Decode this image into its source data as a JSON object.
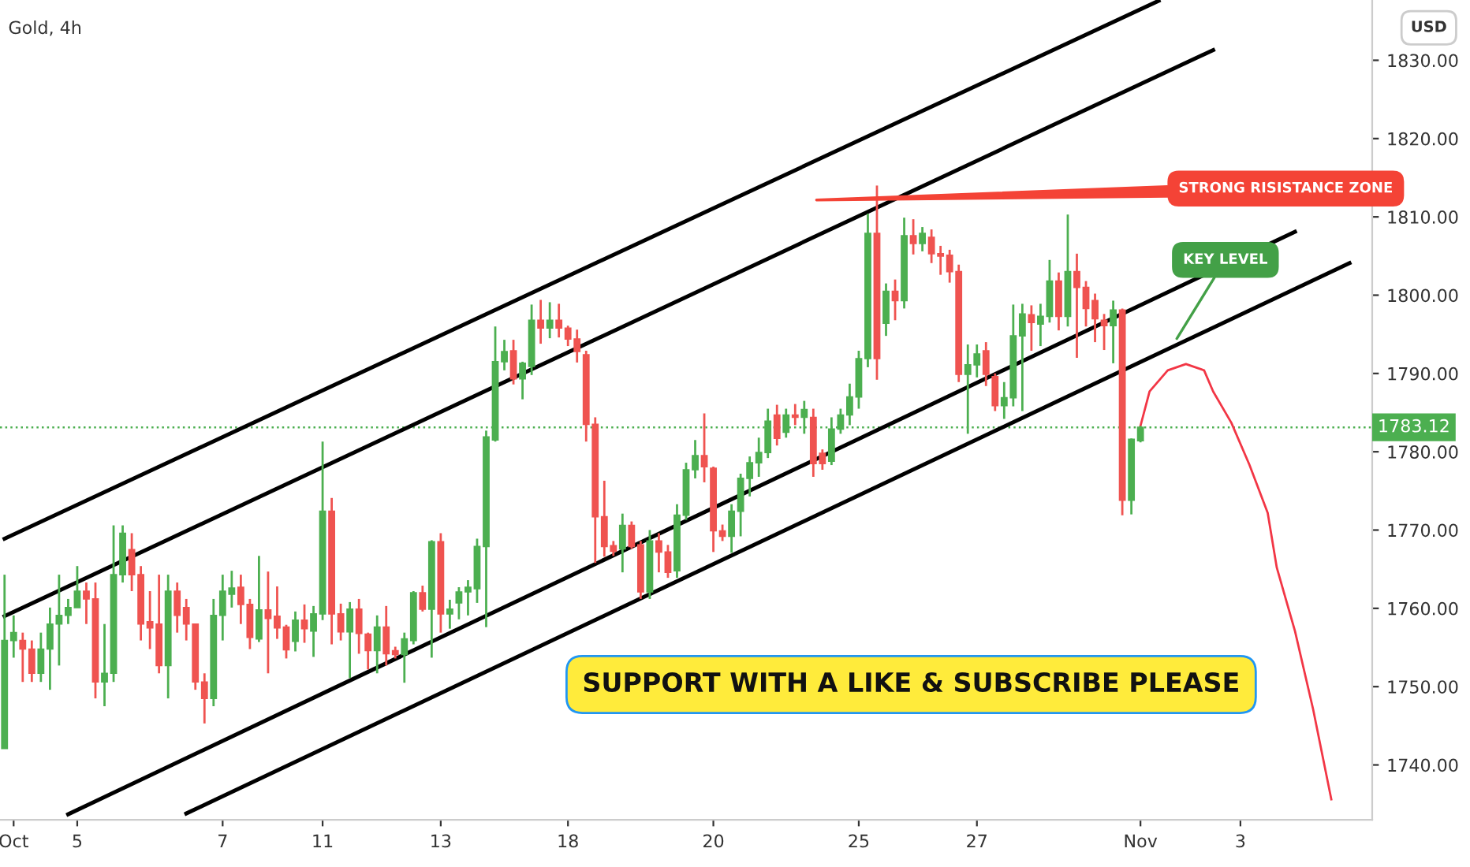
{
  "chart_data": {
    "type": "candlestick",
    "title": "Gold, 4h",
    "categories": [
      null,
      "Oct",
      null,
      null,
      null,
      null,
      null,
      null,
      "5",
      null,
      null,
      null,
      null,
      null,
      null,
      null,
      null,
      null,
      null,
      null,
      null,
      null,
      null,
      null,
      "7",
      null,
      null,
      null,
      null,
      null,
      null,
      null,
      null,
      null,
      null,
      "11",
      null,
      null,
      null,
      null,
      null,
      null,
      null,
      null,
      null,
      null,
      null,
      null,
      "13",
      null,
      null,
      null,
      null,
      null,
      null,
      null,
      null,
      null,
      null,
      null,
      null,
      null,
      "18",
      null,
      null,
      null,
      null,
      null,
      null,
      null,
      null,
      null,
      null,
      null,
      null,
      null,
      null,
      null,
      "20",
      null,
      null,
      null,
      null,
      null,
      null,
      null,
      null,
      null,
      null,
      null,
      null,
      null,
      null,
      null,
      "25",
      null,
      null,
      null,
      null,
      null,
      null,
      null,
      null,
      null,
      null,
      null,
      null,
      "27",
      null,
      null,
      null,
      null,
      null,
      null,
      null,
      null,
      null,
      null,
      null,
      null,
      null,
      null,
      null,
      null,
      null,
      "Nov",
      null,
      null,
      null,
      null,
      null,
      null,
      null,
      null,
      null,
      null,
      "3",
      null,
      null,
      null,
      null,
      null,
      null,
      null,
      null,
      null,
      null,
      null,
      null,
      null,
      null
    ],
    "ohlc": [
      [
        1742.1,
        1764.3,
        1742.1,
        1755.9
      ],
      [
        1755.9,
        1759.1,
        1753.7,
        1756.9
      ],
      [
        1755.9,
        1756.9,
        1750.6,
        1754.8
      ],
      [
        1754.8,
        1755.9,
        1750.6,
        1751.7
      ],
      [
        1751.7,
        1756.9,
        1750.6,
        1754.8
      ],
      [
        1754.8,
        1760.1,
        1749.6,
        1758.0
      ],
      [
        1758.0,
        1764.3,
        1752.7,
        1759.1
      ],
      [
        1759.1,
        1761.2,
        1758.0,
        1760.1
      ],
      [
        1760.1,
        1765.4,
        1760.1,
        1762.2
      ],
      [
        1762.2,
        1763.3,
        1758.0,
        1761.2
      ],
      [
        1761.2,
        1763.3,
        1748.5,
        1750.6
      ],
      [
        1750.6,
        1758.0,
        1747.5,
        1751.7
      ],
      [
        1751.7,
        1770.6,
        1750.6,
        1764.3
      ],
      [
        1764.3,
        1770.6,
        1763.3,
        1769.6
      ],
      [
        1767.5,
        1769.6,
        1762.2,
        1764.3
      ],
      [
        1764.3,
        1765.4,
        1755.9,
        1758.0
      ],
      [
        1758.3,
        1762.2,
        1754.8,
        1757.5
      ],
      [
        1758.0,
        1764.3,
        1751.7,
        1752.7
      ],
      [
        1752.7,
        1764.3,
        1748.5,
        1762.2
      ],
      [
        1762.2,
        1763.3,
        1756.9,
        1759.1
      ],
      [
        1760.1,
        1761.2,
        1755.9,
        1758.0
      ],
      [
        1758.0,
        1758.0,
        1749.6,
        1750.6
      ],
      [
        1750.6,
        1751.7,
        1745.3,
        1748.5
      ],
      [
        1748.5,
        1761.2,
        1747.5,
        1759.1
      ],
      [
        1759.1,
        1764.3,
        1755.9,
        1762.2
      ],
      [
        1761.8,
        1764.8,
        1760.1,
        1762.6
      ],
      [
        1762.7,
        1764.3,
        1758.0,
        1760.5
      ],
      [
        1760.5,
        1761.2,
        1754.8,
        1756.3
      ],
      [
        1756.1,
        1766.7,
        1755.7,
        1759.8
      ],
      [
        1759.8,
        1764.7,
        1751.7,
        1758.7
      ],
      [
        1759.0,
        1762.8,
        1756.1,
        1757.5
      ],
      [
        1757.6,
        1757.9,
        1753.6,
        1754.7
      ],
      [
        1755.8,
        1759.6,
        1754.5,
        1758.5
      ],
      [
        1758.5,
        1760.5,
        1755.6,
        1757.4
      ],
      [
        1757.1,
        1760.3,
        1753.8,
        1759.3
      ],
      [
        1759.3,
        1781.3,
        1758.5,
        1772.4
      ],
      [
        1772.4,
        1774.1,
        1755.4,
        1759.3
      ],
      [
        1759.3,
        1760.6,
        1755.9,
        1757.0
      ],
      [
        1757.0,
        1760.8,
        1751.1,
        1759.9
      ],
      [
        1759.9,
        1761.2,
        1754.2,
        1756.8
      ],
      [
        1756.7,
        1756.9,
        1752.2,
        1754.6
      ],
      [
        1754.6,
        1759.1,
        1751.7,
        1757.6
      ],
      [
        1757.6,
        1760.3,
        1752.7,
        1754.2
      ],
      [
        1754.6,
        1755.1,
        1753.6,
        1754.1
      ],
      [
        1754.1,
        1756.9,
        1750.5,
        1756.1
      ],
      [
        1755.9,
        1762.2,
        1755.4,
        1762.0
      ],
      [
        1762.0,
        1762.9,
        1759.6,
        1759.9
      ],
      [
        1759.9,
        1768.7,
        1753.7,
        1768.5
      ],
      [
        1768.5,
        1769.6,
        1756.9,
        1759.3
      ],
      [
        1759.3,
        1761.1,
        1757.4,
        1759.9
      ],
      [
        1760.7,
        1762.7,
        1758.6,
        1762.1
      ],
      [
        1762.1,
        1763.6,
        1759.1,
        1762.7
      ],
      [
        1762.5,
        1768.9,
        1760.7,
        1767.9
      ],
      [
        1767.9,
        1782.7,
        1757.6,
        1781.9
      ],
      [
        1781.5,
        1796.0,
        1781.3,
        1791.5
      ],
      [
        1791.5,
        1794.3,
        1790.4,
        1792.8
      ],
      [
        1792.9,
        1794.3,
        1788.6,
        1789.3
      ],
      [
        1789.3,
        1791.5,
        1786.7,
        1791.3
      ],
      [
        1790.9,
        1798.8,
        1789.8,
        1796.8
      ],
      [
        1796.8,
        1799.4,
        1793.8,
        1795.8
      ],
      [
        1795.8,
        1799.1,
        1794.5,
        1796.8
      ],
      [
        1796.8,
        1798.9,
        1794.6,
        1795.8
      ],
      [
        1795.8,
        1796.1,
        1793.5,
        1794.4
      ],
      [
        1794.4,
        1795.6,
        1791.4,
        1792.8
      ],
      [
        1792.4,
        1792.9,
        1781.3,
        1783.5
      ],
      [
        1783.5,
        1784.4,
        1765.8,
        1771.7
      ],
      [
        1771.7,
        1776.3,
        1766.6,
        1767.9
      ],
      [
        1768.0,
        1768.6,
        1766.7,
        1767.3
      ],
      [
        1767.6,
        1772.1,
        1764.6,
        1770.6
      ],
      [
        1770.6,
        1771.1,
        1767.6,
        1767.9
      ],
      [
        1768.1,
        1768.6,
        1761.2,
        1762.1
      ],
      [
        1762.1,
        1770.0,
        1761.2,
        1768.6
      ],
      [
        1768.6,
        1769.6,
        1764.6,
        1767.2
      ],
      [
        1767.2,
        1768.1,
        1763.9,
        1764.6
      ],
      [
        1764.8,
        1773.3,
        1763.9,
        1771.9
      ],
      [
        1771.9,
        1778.6,
        1771.3,
        1777.7
      ],
      [
        1777.7,
        1781.5,
        1776.6,
        1779.5
      ],
      [
        1779.5,
        1784.9,
        1776.1,
        1778.1
      ],
      [
        1777.9,
        1778.1,
        1767.2,
        1769.9
      ],
      [
        1769.9,
        1770.7,
        1768.6,
        1769.2
      ],
      [
        1769.2,
        1773.3,
        1767.1,
        1772.4
      ],
      [
        1772.4,
        1777.2,
        1769.2,
        1776.6
      ],
      [
        1776.6,
        1779.4,
        1774.3,
        1778.6
      ],
      [
        1778.6,
        1781.8,
        1776.8,
        1779.9
      ],
      [
        1779.9,
        1785.5,
        1779.2,
        1783.9
      ],
      [
        1784.7,
        1786.0,
        1780.8,
        1781.7
      ],
      [
        1782.5,
        1785.5,
        1781.8,
        1784.7
      ],
      [
        1784.7,
        1786.1,
        1783.4,
        1784.4
      ],
      [
        1784.4,
        1786.5,
        1782.3,
        1785.4
      ],
      [
        1784.4,
        1785.5,
        1776.8,
        1778.5
      ],
      [
        1779.8,
        1780.3,
        1777.7,
        1778.5
      ],
      [
        1778.8,
        1784.4,
        1778.3,
        1782.9
      ],
      [
        1782.9,
        1785.5,
        1782.3,
        1784.7
      ],
      [
        1784.7,
        1788.7,
        1783.4,
        1787.0
      ],
      [
        1787.0,
        1792.9,
        1785.5,
        1791.9
      ],
      [
        1791.9,
        1810.4,
        1790.8,
        1807.9
      ],
      [
        1807.9,
        1814.0,
        1789.2,
        1791.9
      ],
      [
        1796.4,
        1801.5,
        1794.8,
        1800.5
      ],
      [
        1800.5,
        1802.0,
        1796.8,
        1799.3
      ],
      [
        1799.3,
        1809.9,
        1798.3,
        1807.6
      ],
      [
        1807.6,
        1809.7,
        1805.2,
        1806.6
      ],
      [
        1806.6,
        1808.7,
        1805.6,
        1807.9
      ],
      [
        1807.4,
        1808.4,
        1804.1,
        1805.3
      ],
      [
        1805.3,
        1806.3,
        1802.6,
        1805.0
      ],
      [
        1805.1,
        1805.8,
        1801.6,
        1803.0
      ],
      [
        1803.0,
        1803.9,
        1788.9,
        1789.9
      ],
      [
        1789.9,
        1793.7,
        1782.3,
        1791.1
      ],
      [
        1791.1,
        1793.7,
        1789.5,
        1792.5
      ],
      [
        1792.9,
        1794.0,
        1788.4,
        1789.9
      ],
      [
        1789.6,
        1790.0,
        1785.2,
        1785.9
      ],
      [
        1785.9,
        1788.9,
        1784.2,
        1786.9
      ],
      [
        1786.9,
        1798.8,
        1785.8,
        1794.8
      ],
      [
        1794.8,
        1798.9,
        1785.2,
        1797.6
      ],
      [
        1797.5,
        1798.7,
        1792.9,
        1796.5
      ],
      [
        1796.3,
        1798.9,
        1793.5,
        1797.3
      ],
      [
        1797.3,
        1804.5,
        1796.5,
        1801.8
      ],
      [
        1801.8,
        1802.9,
        1795.5,
        1797.3
      ],
      [
        1797.3,
        1810.3,
        1796.0,
        1803.0
      ],
      [
        1803.0,
        1805.3,
        1792.0,
        1801.0
      ],
      [
        1801.0,
        1801.8,
        1796.0,
        1798.3
      ],
      [
        1799.3,
        1800.2,
        1794.0,
        1797.0
      ],
      [
        1796.8,
        1797.6,
        1793.0,
        1796.1
      ],
      [
        1796.1,
        1799.3,
        1791.3,
        1798.1
      ],
      [
        1798.1,
        1798.3,
        1771.9,
        1773.8
      ],
      [
        1773.8,
        1781.7,
        1772.0,
        1781.6
      ],
      [
        1781.4,
        1783.3,
        1781.2,
        1783.12
      ],
      null,
      null,
      null,
      null,
      null,
      null,
      null,
      null,
      null,
      null,
      null,
      null,
      null,
      null,
      null,
      null,
      null,
      null,
      null,
      null,
      null,
      null,
      null,
      null,
      null
    ],
    "colors": [
      "#4caf50",
      "#4caf50",
      "#ef5350",
      "#ef5350",
      "#4caf50",
      "#4caf50",
      "#4caf50",
      "#4caf50",
      "#4caf50",
      "#ef5350",
      "#ef5350",
      "#4caf50",
      "#4caf50",
      "#4caf50",
      "#ef5350",
      "#ef5350",
      "#ef5350",
      "#ef5350",
      "#4caf50",
      "#ef5350",
      "#ef5350",
      "#ef5350",
      "#ef5350",
      "#4caf50",
      "#4caf50",
      "#4caf50",
      "#ef5350",
      "#ef5350",
      "#4caf50",
      "#ef5350",
      "#ef5350",
      "#ef5350",
      "#4caf50",
      "#ef5350",
      "#4caf50",
      "#4caf50",
      "#ef5350",
      "#ef5350",
      "#4caf50",
      "#ef5350",
      "#ef5350",
      "#4caf50",
      "#ef5350",
      "#ef5350",
      "#4caf50",
      "#4caf50",
      "#ef5350",
      "#4caf50",
      "#ef5350",
      "#4caf50",
      "#4caf50",
      "#4caf50",
      "#4caf50",
      "#4caf50",
      "#4caf50",
      "#4caf50",
      "#ef5350",
      "#4caf50",
      "#4caf50",
      "#ef5350",
      "#4caf50",
      "#ef5350",
      "#ef5350",
      "#ef5350",
      "#ef5350",
      "#ef5350",
      "#ef5350",
      "#ef5350",
      "#4caf50",
      "#ef5350",
      "#ef5350",
      "#4caf50",
      "#ef5350",
      "#ef5350",
      "#4caf50",
      "#4caf50",
      "#4caf50",
      "#ef5350",
      "#ef5350",
      "#ef5350",
      "#4caf50",
      "#4caf50",
      "#4caf50",
      "#4caf50",
      "#4caf50",
      "#ef5350",
      "#4caf50",
      "#ef5350",
      "#4caf50",
      "#ef5350",
      "#ef5350",
      "#4caf50",
      "#4caf50",
      "#4caf50",
      "#4caf50",
      "#4caf50",
      "#ef5350",
      "#4caf50",
      "#ef5350",
      "#4caf50",
      "#ef5350",
      "#4caf50",
      "#ef5350",
      "#ef5350",
      "#ef5350",
      "#ef5350",
      "#4caf50",
      "#4caf50",
      "#ef5350",
      "#ef5350",
      "#4caf50",
      "#4caf50",
      "#4caf50",
      "#ef5350",
      "#4caf50",
      "#4caf50",
      "#ef5350",
      "#4caf50",
      "#ef5350",
      "#ef5350",
      "#ef5350",
      "#ef5350",
      "#4caf50",
      "#ef5350",
      "#4caf50",
      "#4caf50",
      null,
      null,
      null,
      null,
      null,
      null,
      null,
      null,
      null,
      null,
      null,
      null,
      null,
      null,
      null,
      null,
      null,
      null,
      null,
      null,
      null,
      null,
      null,
      null,
      null
    ],
    "series": [
      {
        "type": "line",
        "color": "#000000",
        "values": [
          1768.9,
          null,
          null,
          null,
          null,
          null,
          null,
          null,
          null,
          null,
          null,
          null,
          null,
          null,
          null,
          null,
          null,
          null,
          null,
          null,
          null,
          null,
          null,
          null,
          null,
          null,
          null,
          null,
          null,
          null,
          null,
          null,
          null,
          null,
          null,
          null,
          null,
          null,
          null,
          null,
          null,
          null,
          null,
          null,
          null,
          null,
          null,
          null,
          null,
          null,
          null,
          null,
          null,
          null,
          null,
          null,
          null,
          null,
          null,
          null,
          null,
          null,
          null,
          null,
          null,
          null,
          null,
          null,
          null,
          null,
          null,
          null,
          null,
          null,
          null,
          null,
          null,
          null,
          null,
          null,
          null,
          null,
          null,
          null,
          null,
          null,
          null,
          null,
          null,
          null,
          null,
          null,
          null,
          null,
          null,
          null,
          null,
          null,
          null,
          null,
          null,
          null,
          null,
          null,
          null,
          null,
          null,
          null,
          null,
          null,
          null,
          null,
          null,
          null,
          null,
          null,
          null,
          null,
          null,
          null,
          null,
          null,
          null,
          null,
          null,
          null,
          null,
          1837.6,
          null,
          null,
          null,
          null,
          null,
          null,
          null,
          null,
          null,
          null,
          null,
          null,
          null,
          null,
          null,
          null,
          null,
          null,
          null,
          null,
          null,
          null,
          null
        ]
      },
      {
        "type": "line",
        "color": "#000000",
        "values": [
          1759.0,
          null,
          null,
          null,
          null,
          null,
          null,
          null,
          null,
          null,
          null,
          null,
          null,
          null,
          null,
          null,
          null,
          null,
          null,
          null,
          null,
          null,
          null,
          null,
          null,
          null,
          null,
          null,
          null,
          null,
          null,
          null,
          null,
          null,
          null,
          null,
          null,
          null,
          null,
          null,
          null,
          null,
          null,
          null,
          null,
          null,
          null,
          null,
          null,
          null,
          null,
          null,
          null,
          null,
          null,
          null,
          null,
          null,
          null,
          null,
          null,
          null,
          null,
          null,
          null,
          null,
          null,
          null,
          null,
          null,
          null,
          null,
          null,
          null,
          null,
          null,
          null,
          null,
          null,
          null,
          null,
          null,
          null,
          null,
          null,
          null,
          null,
          null,
          null,
          null,
          null,
          null,
          null,
          null,
          null,
          null,
          null,
          null,
          null,
          null,
          null,
          null,
          null,
          null,
          null,
          null,
          null,
          null,
          null,
          null,
          null,
          null,
          null,
          null,
          null,
          null,
          null,
          null,
          null,
          null,
          null,
          null,
          null,
          null,
          null,
          null,
          null,
          null,
          null,
          null,
          null,
          null,
          null,
          1831.3,
          null,
          null,
          null,
          null,
          null,
          null,
          null,
          null,
          null,
          null,
          null,
          null,
          null,
          null,
          null,
          null,
          null
        ]
      },
      {
        "type": "line",
        "color": "#000000",
        "values": [
          null,
          null,
          null,
          null,
          null,
          null,
          null,
          1733.7,
          null,
          null,
          null,
          null,
          null,
          null,
          null,
          null,
          null,
          null,
          null,
          null,
          null,
          null,
          null,
          null,
          null,
          null,
          null,
          null,
          null,
          null,
          null,
          null,
          null,
          null,
          null,
          null,
          null,
          null,
          null,
          null,
          null,
          null,
          null,
          null,
          null,
          null,
          null,
          null,
          null,
          null,
          null,
          null,
          null,
          null,
          null,
          null,
          null,
          null,
          null,
          null,
          null,
          null,
          null,
          null,
          null,
          null,
          null,
          null,
          null,
          null,
          null,
          null,
          null,
          null,
          null,
          null,
          null,
          null,
          null,
          null,
          null,
          null,
          null,
          null,
          null,
          null,
          null,
          null,
          null,
          null,
          null,
          null,
          null,
          null,
          null,
          null,
          null,
          null,
          null,
          null,
          null,
          null,
          null,
          null,
          null,
          null,
          null,
          null,
          null,
          null,
          null,
          null,
          null,
          null,
          null,
          null,
          null,
          null,
          null,
          null,
          null,
          null,
          null,
          null,
          null,
          null,
          null,
          null,
          null,
          null,
          null,
          null,
          null,
          null,
          null,
          null,
          null,
          null,
          null,
          null,
          null,
          null,
          1808.1,
          null,
          null,
          null,
          null,
          null,
          null,
          null,
          null
        ]
      },
      {
        "type": "line",
        "color": "#000000",
        "values": [
          null,
          null,
          null,
          null,
          null,
          null,
          null,
          null,
          null,
          null,
          null,
          null,
          null,
          null,
          null,
          null,
          null,
          null,
          null,
          null,
          1733.8,
          null,
          null,
          null,
          null,
          null,
          null,
          null,
          null,
          null,
          null,
          null,
          null,
          null,
          null,
          null,
          null,
          null,
          null,
          null,
          null,
          null,
          null,
          null,
          null,
          null,
          null,
          null,
          null,
          null,
          null,
          null,
          null,
          null,
          null,
          null,
          null,
          null,
          null,
          null,
          null,
          null,
          null,
          null,
          null,
          null,
          null,
          null,
          null,
          null,
          null,
          null,
          null,
          null,
          null,
          null,
          null,
          null,
          null,
          null,
          null,
          null,
          null,
          null,
          null,
          null,
          null,
          null,
          null,
          null,
          null,
          null,
          null,
          null,
          null,
          null,
          null,
          null,
          null,
          null,
          null,
          null,
          null,
          null,
          null,
          null,
          null,
          null,
          null,
          null,
          null,
          null,
          null,
          null,
          null,
          null,
          null,
          null,
          null,
          null,
          null,
          null,
          null,
          null,
          null,
          null,
          null,
          null,
          null,
          null,
          null,
          null,
          null,
          null,
          null,
          null,
          null,
          null,
          null,
          null,
          null,
          null,
          null,
          null,
          null,
          null,
          null,
          null,
          1804.1,
          null,
          null
        ]
      },
      {
        "type": "line",
        "color": "#f23645",
        "values": [
          null,
          null,
          null,
          null,
          null,
          null,
          null,
          null,
          null,
          null,
          null,
          null,
          null,
          null,
          null,
          null,
          null,
          null,
          null,
          null,
          null,
          null,
          null,
          null,
          null,
          null,
          null,
          null,
          null,
          null,
          null,
          null,
          null,
          null,
          null,
          null,
          null,
          null,
          null,
          null,
          null,
          null,
          null,
          null,
          null,
          null,
          null,
          null,
          null,
          null,
          null,
          null,
          null,
          null,
          null,
          null,
          null,
          null,
          null,
          null,
          null,
          null,
          null,
          null,
          null,
          null,
          null,
          null,
          null,
          null,
          null,
          null,
          null,
          null,
          null,
          null,
          null,
          null,
          null,
          null,
          null,
          null,
          null,
          null,
          null,
          null,
          null,
          null,
          null,
          null,
          null,
          null,
          null,
          null,
          null,
          null,
          null,
          null,
          null,
          null,
          null,
          null,
          null,
          null,
          null,
          null,
          null,
          null,
          null,
          null,
          null,
          null,
          null,
          null,
          null,
          null,
          null,
          null,
          null,
          null,
          null,
          null,
          null,
          null,
          null,
          1783.3,
          1787.7,
          null,
          1790.4,
          null,
          1791.2,
          null,
          1790.4,
          1787.7,
          null,
          1783.7,
          null,
          1778.3,
          null,
          1772.2,
          1765.2,
          null,
          1757.1,
          null,
          1747.1,
          null,
          1735.6,
          null,
          null,
          null,
          null
        ]
      }
    ],
    "ylim": [
      1733.0,
      1837.7
    ],
    "yticks": [
      {
        "value": 1740,
        "label": "1740.00"
      },
      {
        "value": 1750,
        "label": "1750.00"
      },
      {
        "value": 1760,
        "label": "1760.00"
      },
      {
        "value": 1770,
        "label": "1770.00"
      },
      {
        "value": 1780,
        "label": "1780.00"
      },
      {
        "value": 1790,
        "label": "1790.00"
      },
      {
        "value": 1800,
        "label": "1800.00"
      },
      {
        "value": 1810,
        "label": "1810.00"
      },
      {
        "value": 1820,
        "label": "1820.00"
      },
      {
        "value": 1830,
        "label": "1830.00"
      }
    ],
    "ref_lines": [
      {
        "axis": "y",
        "value": 1783.12,
        "label": "1783.12",
        "color": "#4caf50",
        "line_style": "dotted"
      }
    ],
    "annotations": [
      "STRONG RISISTANCE ZONE",
      "KEY LEVEL",
      "SUPPORT WITH A LIKE & SUBSCRIBE PLEASE",
      "USD"
    ]
  }
}
